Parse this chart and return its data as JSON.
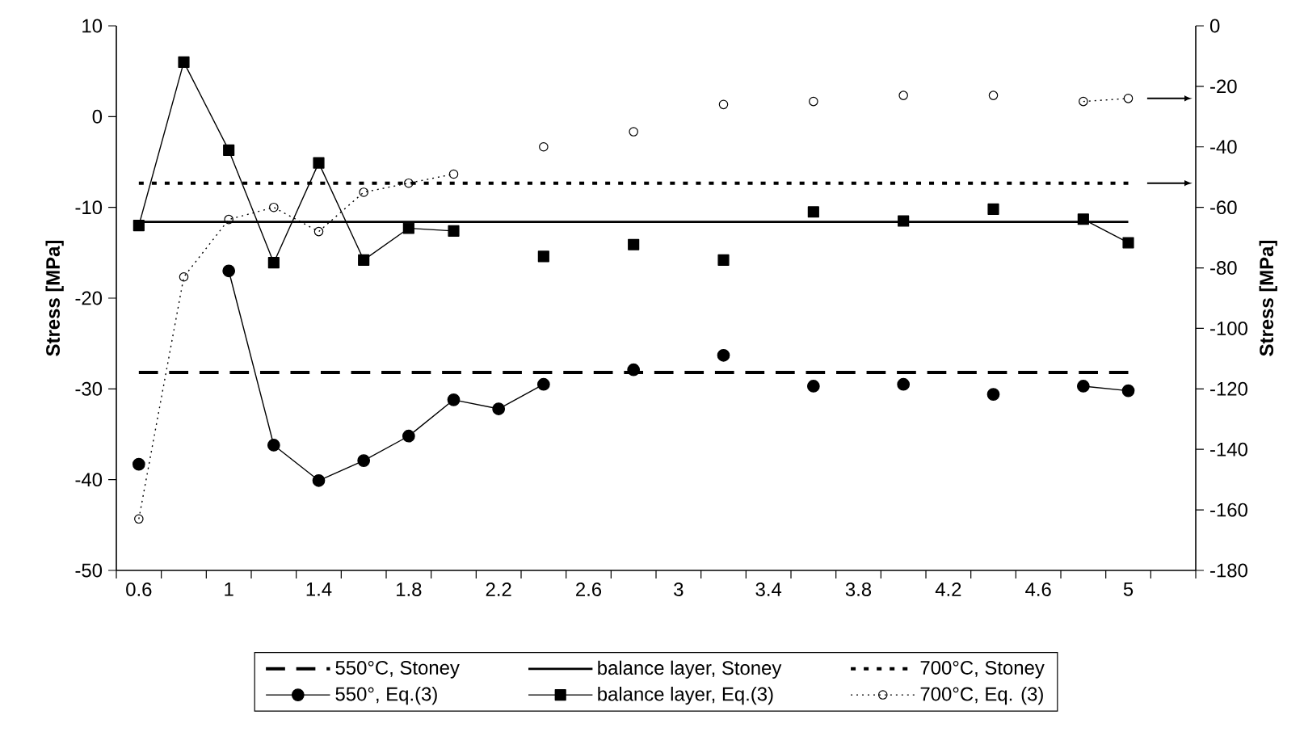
{
  "chart_data": {
    "type": "line",
    "ylabel": "Stress [MPa]",
    "y2label": "Stress [MPa]",
    "x": [
      0.6,
      0.8,
      1.0,
      1.2,
      1.4,
      1.6,
      1.8,
      2.0,
      2.2,
      2.4,
      2.6,
      2.8,
      3.0,
      3.2,
      3.4,
      3.6,
      3.8,
      4.0,
      4.2,
      4.4,
      4.6,
      4.8,
      5.0
    ],
    "xlim": [
      0.5,
      5.3
    ],
    "xticks": [
      0.6,
      1,
      1.4,
      1.8,
      2.2,
      2.6,
      3,
      3.4,
      3.8,
      4.2,
      4.6,
      5,
      {
        "value": 0.5,
        "label": null
      },
      {
        "value": 0.7,
        "label": null
      },
      {
        "value": 0.9,
        "label": null
      },
      {
        "value": 1.1,
        "label": null
      },
      {
        "value": 1.3,
        "label": null
      },
      {
        "value": 1.5,
        "label": null
      },
      {
        "value": 1.7,
        "label": null
      },
      {
        "value": 1.9,
        "label": null
      },
      {
        "value": 2.1,
        "label": null
      },
      {
        "value": 2.3,
        "label": null
      },
      {
        "value": 2.5,
        "label": null
      },
      {
        "value": 2.7,
        "label": null
      },
      {
        "value": 2.9,
        "label": null
      },
      {
        "value": 3.1,
        "label": null
      },
      {
        "value": 3.3,
        "label": null
      },
      {
        "value": 3.5,
        "label": null
      },
      {
        "value": 3.7,
        "label": null
      },
      {
        "value": 3.9,
        "label": null
      },
      {
        "value": 4.1,
        "label": null
      },
      {
        "value": 4.3,
        "label": null
      },
      {
        "value": 4.5,
        "label": null
      },
      {
        "value": 4.7,
        "label": null
      },
      {
        "value": 4.9,
        "label": null
      },
      {
        "value": 5.1,
        "label": null
      },
      {
        "value": 5.3,
        "label": null
      }
    ],
    "ylim": [
      -50,
      10
    ],
    "yticks": [
      -50,
      -40,
      -30,
      -20,
      -10,
      0,
      10
    ],
    "y2lim": [
      -180,
      0
    ],
    "y2ticks": [
      -180,
      -160,
      -140,
      -120,
      -100,
      -80,
      -60,
      -40,
      -20,
      0
    ],
    "grid": false,
    "legend": "bottom",
    "series": [
      {
        "name": "550°C, Stoney",
        "color": "#000000",
        "values": [
          -28.2,
          -28.2,
          -28.2,
          -28.2,
          -28.2,
          -28.2,
          -28.2,
          -28.2,
          -28.2,
          -28.2,
          -28.2,
          -28.2,
          -28.2,
          -28.2,
          -28.2,
          -28.2,
          -28.2,
          -28.2,
          -28.2,
          -28.2,
          -28.2,
          -28.2,
          -28.2
        ],
        "marker": "none",
        "line_style": "dashed"
      },
      {
        "name": "balance layer, Stoney",
        "color": "#000000",
        "values": [
          -11.6,
          -11.6,
          -11.6,
          -11.6,
          -11.6,
          -11.6,
          -11.6,
          -11.6,
          -11.6,
          -11.6,
          -11.6,
          -11.6,
          -11.6,
          -11.6,
          -11.6,
          -11.6,
          -11.6,
          -11.6,
          -11.6,
          -11.6,
          -11.6,
          -11.6,
          -11.6
        ],
        "marker": "none",
        "line_style": "solid"
      },
      {
        "name": "700°C, Stoney",
        "color": "#000000",
        "values": [
          -52,
          -52,
          -52,
          -52,
          -52,
          -52,
          -52,
          -52,
          -52,
          -52,
          -52,
          -52,
          -52,
          -52,
          -52,
          -52,
          -52,
          -52,
          -52,
          -52,
          -52,
          -52,
          -52
        ],
        "axis": "y2",
        "marker": "none",
        "line_style": "dotted"
      },
      {
        "name": "550°, Eq.(3)",
        "color": "#000000",
        "values": [
          -38.3,
          null,
          -17.0,
          -36.2,
          -40.1,
          -37.9,
          -35.2,
          -31.2,
          -32.2,
          -29.5,
          null,
          -27.9,
          null,
          -26.3,
          null,
          -29.7,
          null,
          -29.5,
          null,
          -30.6,
          null,
          -29.7,
          -30.2
        ],
        "marker": "circle",
        "line_style": "solid"
      },
      {
        "name": "balance layer, Eq.(3)",
        "color": "#000000",
        "values": [
          -12,
          6,
          -3.7,
          -16.1,
          -5.1,
          -15.8,
          -12.3,
          -12.6,
          null,
          -15.4,
          null,
          -14.1,
          null,
          -15.8,
          null,
          -10.5,
          null,
          -11.5,
          null,
          -10.2,
          null,
          -11.3,
          -13.9
        ],
        "marker": "square",
        "line_style": "solid"
      },
      {
        "name": "700°C, Eq. (3)",
        "color": "#000000",
        "values": [
          -163,
          -83,
          -64,
          -60,
          -68,
          -55,
          -52,
          -49,
          null,
          -40,
          null,
          -35,
          null,
          -26,
          null,
          -25,
          null,
          -23,
          null,
          -23,
          null,
          -25,
          -24
        ],
        "axis": "y2",
        "marker": "circle",
        "line_style": "dotted"
      }
    ]
  }
}
